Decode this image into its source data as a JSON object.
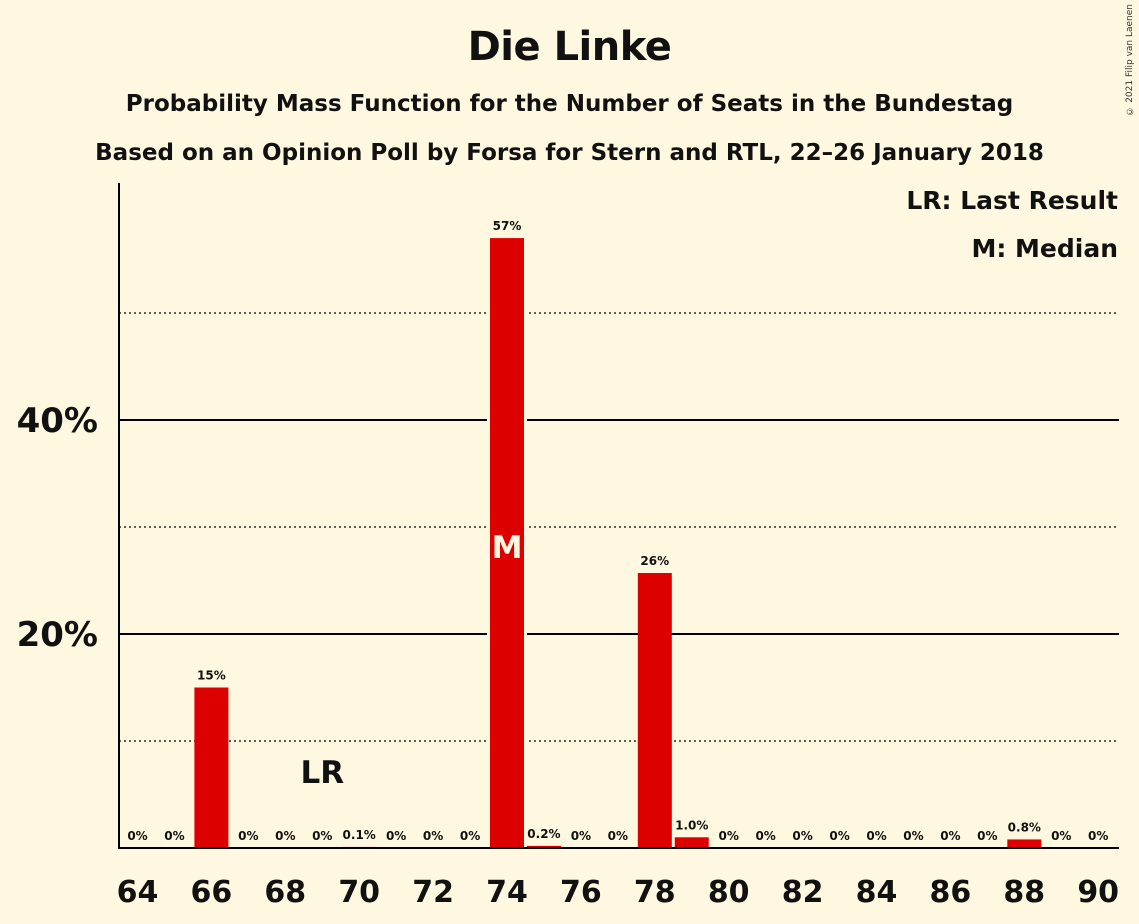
{
  "title": "Die Linke",
  "subtitle_1": "Probability Mass Function for the Number of Seats in the Bundestag",
  "subtitle_2": "Based on an Opinion Poll by Forsa for Stern and RTL, 22–26 January 2018",
  "legend": {
    "last_result": "LR: Last Result",
    "median": "M: Median"
  },
  "copyright": "© 2021 Filip van Laenen",
  "colors": {
    "background": "#fff8e1",
    "bar": "#dd0000",
    "axis": "#000000"
  },
  "chart_data": {
    "type": "bar",
    "title": "Die Linke",
    "xlabel": "",
    "ylabel": "",
    "ylim": [
      0,
      62
    ],
    "y_ticks_labeled": [
      "20%",
      "40%"
    ],
    "y_tick_values_labeled": [
      20,
      40
    ],
    "y_gridlines_dotted": [
      10,
      30,
      50
    ],
    "x_tick_labels": [
      "64",
      "66",
      "68",
      "70",
      "72",
      "74",
      "76",
      "78",
      "80",
      "82",
      "84",
      "86",
      "88",
      "90"
    ],
    "categories": [
      64,
      65,
      66,
      67,
      68,
      69,
      70,
      71,
      72,
      73,
      74,
      75,
      76,
      77,
      78,
      79,
      80,
      81,
      82,
      83,
      84,
      85,
      86,
      87,
      88,
      89,
      90
    ],
    "values": [
      0,
      0,
      15,
      0,
      0,
      0,
      0.1,
      0,
      0,
      0,
      57,
      0.2,
      0,
      0,
      25.7,
      1.0,
      0,
      0,
      0,
      0,
      0,
      0,
      0,
      0,
      0.8,
      0,
      0
    ],
    "labels": [
      "0%",
      "0%",
      "15%",
      "0%",
      "0%",
      "0%",
      "0.1%",
      "0%",
      "0%",
      "0%",
      "57%",
      "0.2%",
      "0%",
      "0%",
      "26%",
      "1.0%",
      "0%",
      "0%",
      "0%",
      "0%",
      "0%",
      "0%",
      "0%",
      "0%",
      "0.8%",
      "0%",
      "0%"
    ],
    "last_result": {
      "seat": 69,
      "label": "LR"
    },
    "median": {
      "seat": 74,
      "label": "M"
    },
    "legend_position": "top-right"
  }
}
